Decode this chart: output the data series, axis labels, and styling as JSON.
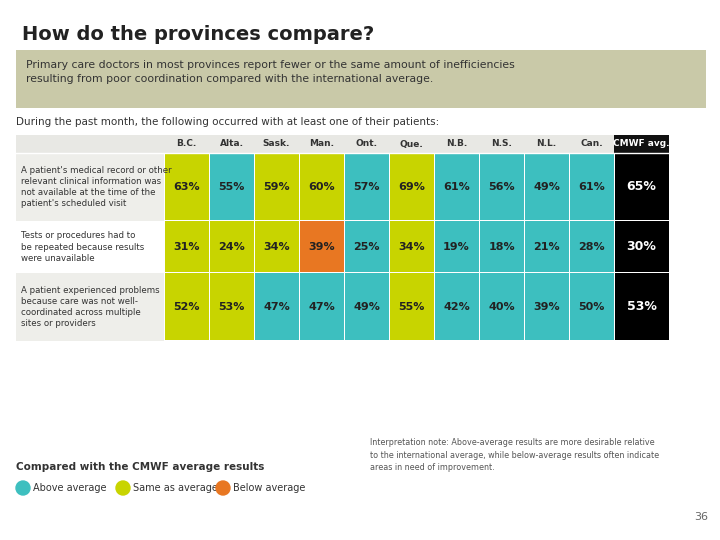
{
  "title": "How do the provinces compare?",
  "subtitle_box": "Primary care doctors in most provinces report fewer or the same amount of inefficiencies\nresulting from poor coordination compared with the international average.",
  "during_text": "During the past month, the following occurred with at least one of their patients:",
  "col_headers": [
    "B.C.",
    "Alta.",
    "Sask.",
    "Man.",
    "Ont.",
    "Que.",
    "N.B.",
    "N.S.",
    "N.L.",
    "Can.",
    "CMWF avg."
  ],
  "row_labels": [
    "A patient's medical record or other\nrelevant clinical information was\nnot available at the time of the\npatient's scheduled visit",
    "Tests or procedures had to\nbe repeated because results\nwere unavailable",
    "A patient experienced problems\nbecause care was not well-\ncoordinated across multiple\nsites or providers"
  ],
  "values": [
    [
      63,
      55,
      59,
      60,
      57,
      69,
      61,
      56,
      49,
      61,
      65
    ],
    [
      31,
      24,
      34,
      39,
      25,
      34,
      19,
      18,
      21,
      28,
      30
    ],
    [
      52,
      53,
      47,
      47,
      49,
      55,
      42,
      40,
      39,
      50,
      53
    ]
  ],
  "cell_colors": [
    [
      "#c8d400",
      "#3dbfbf",
      "#c8d400",
      "#c8d400",
      "#3dbfbf",
      "#c8d400",
      "#3dbfbf",
      "#3dbfbf",
      "#3dbfbf",
      "#3dbfbf",
      "#000000"
    ],
    [
      "#c8d400",
      "#c8d400",
      "#c8d400",
      "#e87722",
      "#3dbfbf",
      "#c8d400",
      "#3dbfbf",
      "#3dbfbf",
      "#3dbfbf",
      "#3dbfbf",
      "#000000"
    ],
    [
      "#c8d400",
      "#c8d400",
      "#3dbfbf",
      "#3dbfbf",
      "#3dbfbf",
      "#c8d400",
      "#3dbfbf",
      "#3dbfbf",
      "#3dbfbf",
      "#3dbfbf",
      "#000000"
    ]
  ],
  "text_colors": [
    [
      "#222222",
      "#222222",
      "#222222",
      "#222222",
      "#222222",
      "#222222",
      "#222222",
      "#222222",
      "#222222",
      "#222222",
      "#ffffff"
    ],
    [
      "#222222",
      "#222222",
      "#222222",
      "#222222",
      "#222222",
      "#222222",
      "#222222",
      "#222222",
      "#222222",
      "#222222",
      "#ffffff"
    ],
    [
      "#222222",
      "#222222",
      "#222222",
      "#222222",
      "#222222",
      "#222222",
      "#222222",
      "#222222",
      "#222222",
      "#222222",
      "#ffffff"
    ]
  ],
  "legend_items": [
    {
      "label": "Above average",
      "color": "#3dbfbf"
    },
    {
      "label": "Same as average",
      "color": "#c8d400"
    },
    {
      "label": "Below average",
      "color": "#e87722"
    }
  ],
  "legend_title": "Compared with the CMWF average results",
  "note_text": "Interpretation note: Above-average results are more desirable relative\nto the international average, while below-average results often indicate\nareas in need of improvement.",
  "page_num": "36",
  "bg_color": "#ffffff",
  "box_bg": "#c9c9a8",
  "header_bg": "#e8e8e4",
  "row_bg_alt": "#eeeeea"
}
